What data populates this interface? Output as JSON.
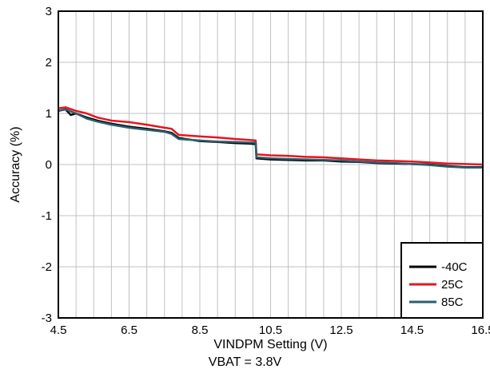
{
  "chart_data": {
    "type": "line",
    "xlabel": "VINDPM Setting (V)",
    "ylabel": "Accuracy (%)",
    "xlim": [
      4.5,
      16.5
    ],
    "ylim": [
      -3,
      3
    ],
    "xticks": [
      4.5,
      6.5,
      8.5,
      10.5,
      12.5,
      14.5,
      16.5
    ],
    "yticks": [
      -3,
      -2,
      -1,
      0,
      1,
      2,
      3
    ],
    "xtick_labels": [
      "4.5",
      "6.5",
      "8.5",
      "10.5",
      "12.5",
      "14.5",
      "16.5"
    ],
    "ytick_labels": [
      "-3",
      "-2",
      "-1",
      "0",
      "1",
      "2",
      "3"
    ],
    "grid": true,
    "legend_position": "bottom-right",
    "series": [
      {
        "name": "-40C",
        "color": "#000000",
        "x": [
          4.5,
          4.7,
          4.85,
          5.0,
          5.3,
          5.6,
          6.0,
          6.5,
          7.0,
          7.5,
          7.7,
          7.9,
          8.5,
          9.0,
          9.5,
          9.9,
          10.08,
          10.1,
          10.5,
          11.0,
          11.5,
          12.0,
          12.5,
          13.0,
          13.5,
          14.0,
          14.5,
          15.0,
          15.5,
          16.0,
          16.5
        ],
        "y": [
          1.05,
          1.08,
          0.97,
          1.0,
          0.92,
          0.86,
          0.8,
          0.74,
          0.7,
          0.65,
          0.62,
          0.52,
          0.46,
          0.44,
          0.42,
          0.41,
          0.4,
          0.12,
          0.1,
          0.09,
          0.08,
          0.08,
          0.06,
          0.05,
          0.03,
          0.02,
          0.01,
          0.0,
          -0.03,
          -0.05,
          -0.05
        ]
      },
      {
        "name": "25C",
        "color": "#e8141e",
        "x": [
          4.5,
          4.7,
          5.0,
          5.3,
          5.6,
          6.0,
          6.5,
          7.0,
          7.5,
          7.7,
          7.9,
          8.5,
          9.0,
          9.5,
          9.9,
          10.08,
          10.1,
          10.5,
          11.0,
          11.5,
          12.0,
          12.5,
          13.0,
          13.5,
          14.0,
          14.5,
          15.0,
          15.5,
          16.0,
          16.5
        ],
        "y": [
          1.1,
          1.12,
          1.05,
          1.0,
          0.92,
          0.86,
          0.83,
          0.78,
          0.72,
          0.7,
          0.58,
          0.55,
          0.53,
          0.5,
          0.48,
          0.47,
          0.2,
          0.18,
          0.17,
          0.15,
          0.14,
          0.12,
          0.1,
          0.08,
          0.07,
          0.06,
          0.04,
          0.02,
          0.01,
          0.0
        ]
      },
      {
        "name": "85C",
        "color": "#2b5f70",
        "x": [
          4.5,
          4.7,
          5.0,
          5.3,
          5.6,
          6.0,
          6.5,
          7.0,
          7.5,
          7.7,
          7.9,
          8.5,
          9.0,
          9.5,
          9.9,
          10.08,
          10.1,
          10.5,
          11.0,
          11.5,
          12.0,
          12.5,
          13.0,
          13.5,
          14.0,
          14.5,
          15.0,
          15.5,
          16.0,
          16.5
        ],
        "y": [
          1.05,
          1.08,
          1.0,
          0.9,
          0.84,
          0.78,
          0.72,
          0.68,
          0.64,
          0.6,
          0.5,
          0.47,
          0.45,
          0.44,
          0.43,
          0.43,
          0.14,
          0.12,
          0.11,
          0.1,
          0.09,
          0.08,
          0.06,
          0.04,
          0.03,
          0.01,
          -0.01,
          -0.04,
          -0.06,
          -0.06
        ]
      }
    ],
    "caption": "VBAT = 3.8V"
  }
}
